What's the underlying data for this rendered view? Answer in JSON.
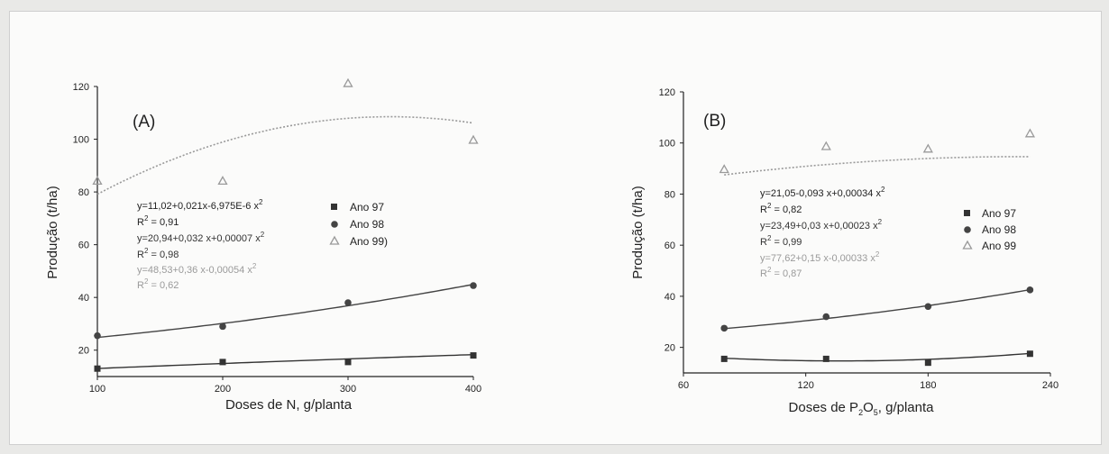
{
  "chart_data": [
    {
      "type": "scatter",
      "panel_label": "(A)",
      "xlabel": "Doses de N, g/planta",
      "ylabel": "Produção (t/ha)",
      "xlim": [
        100,
        400
      ],
      "ylim": [
        10,
        120
      ],
      "xticks": [
        100,
        200,
        300,
        400
      ],
      "yticks": [
        20,
        40,
        60,
        80,
        100,
        120
      ],
      "series": [
        {
          "name": "Ano 97",
          "marker": "square",
          "color": "#333333",
          "x": [
            100,
            200,
            300,
            400
          ],
          "y": [
            13,
            15.5,
            15.5,
            18
          ],
          "fit": [
            11.02,
            0.021,
            -6.975e-06
          ],
          "equation": "y=11,02+0,021x-6,975E-6 x",
          "equation_sup": "2",
          "r2": "R",
          "r2_sup": "2",
          "r2_value": " = 0,91"
        },
        {
          "name": "Ano 98",
          "marker": "circle",
          "color": "#444444",
          "x": [
            100,
            200,
            300,
            400
          ],
          "y": [
            25.5,
            29,
            38,
            44.5
          ],
          "fit": [
            20.94,
            0.032,
            7e-05
          ],
          "equation": "y=20,94+0,032 x+0,00007 x",
          "equation_sup": "2",
          "r2": "R",
          "r2_sup": "2",
          "r2_value": " = 0,98"
        },
        {
          "name": "Ano 99)",
          "marker": "triangle",
          "color": "#9a9a9a",
          "x": [
            100,
            200,
            300,
            400
          ],
          "y": [
            84,
            84,
            121,
            99.5
          ],
          "fit": [
            48.53,
            0.36,
            -0.00054
          ],
          "equation": "y=48,53+0,36 x-0,00054 x",
          "equation_sup": "2",
          "r2": "R",
          "r2_sup": "2",
          "r2_value": " = 0,62"
        }
      ]
    },
    {
      "type": "scatter",
      "panel_label": "(B)",
      "xlabel_parts": [
        "Doses de P",
        "2",
        "O",
        "5",
        ", g/planta"
      ],
      "ylabel": "Produção (t/ha)",
      "xlim": [
        60,
        240
      ],
      "ylim": [
        10,
        120
      ],
      "xticks": [
        60,
        120,
        180,
        240
      ],
      "yticks": [
        20,
        40,
        60,
        80,
        100,
        120
      ],
      "series": [
        {
          "name": "Ano 97",
          "marker": "square",
          "color": "#333333",
          "x": [
            80,
            130,
            180,
            230
          ],
          "y": [
            15.5,
            15.5,
            14,
            17.5
          ],
          "fit": [
            21.05,
            -0.093,
            0.00034
          ],
          "equation": "y=21,05-0,093 x+0,00034 x",
          "equation_sup": "2",
          "r2": "R",
          "r2_sup": "2",
          "r2_value": " = 0,82"
        },
        {
          "name": "Ano 98",
          "marker": "circle",
          "color": "#444444",
          "x": [
            80,
            130,
            180,
            230
          ],
          "y": [
            27.5,
            32,
            36,
            42.5
          ],
          "fit": [
            23.49,
            0.03,
            0.00023
          ],
          "equation": "y=23,49+0,03 x+0,00023 x",
          "equation_sup": "2",
          "r2": "R",
          "r2_sup": "2",
          "r2_value": " = 0,99"
        },
        {
          "name": "Ano 99",
          "marker": "triangle",
          "color": "#9a9a9a",
          "x": [
            80,
            130,
            180,
            230
          ],
          "y": [
            89.5,
            98.5,
            97.5,
            103.5
          ],
          "fit": [
            77.62,
            0.15,
            -0.00033
          ],
          "equation": "y=77,62+0,15 x-0,00033 x",
          "equation_sup": "2",
          "r2": "R",
          "r2_sup": "2",
          "r2_value": " = 0,87"
        }
      ]
    }
  ]
}
